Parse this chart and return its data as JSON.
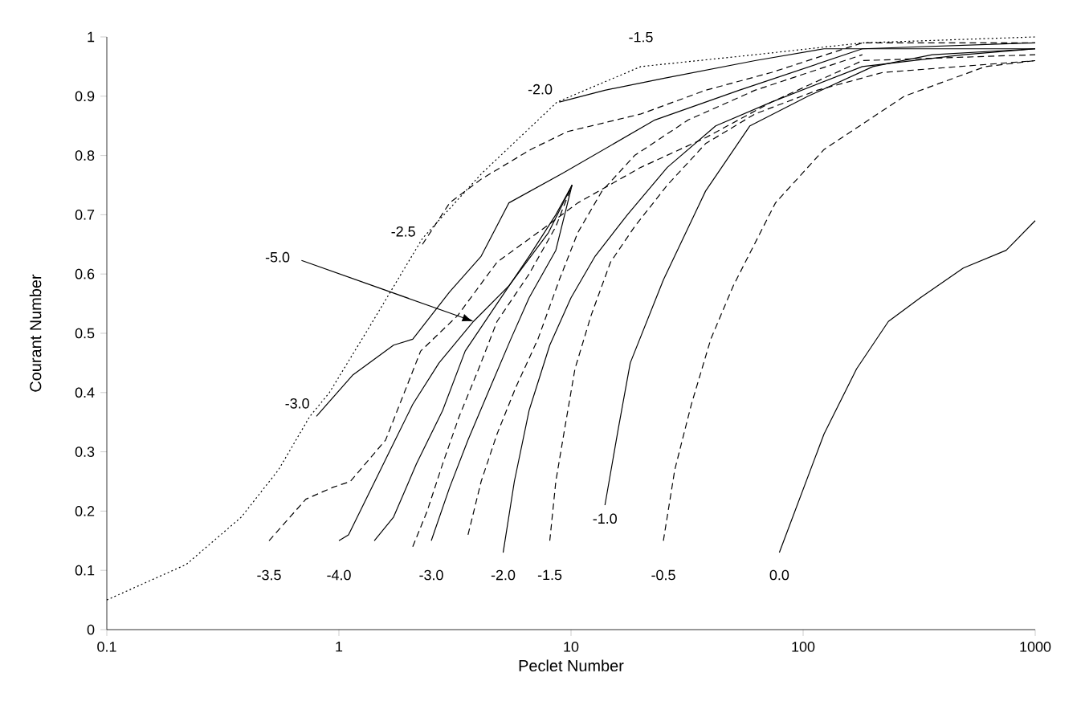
{
  "chart_data": {
    "type": "line",
    "xlabel": "Peclet Number",
    "ylabel": "Courant Number",
    "log": "x",
    "xlim": [
      0.1,
      1000
    ],
    "xticks": [
      0.1,
      1,
      10,
      100,
      1000
    ],
    "ylim": [
      0,
      1
    ],
    "yticks": [
      0,
      0.1,
      0.2,
      0.3,
      0.4,
      0.5,
      0.6,
      0.7,
      0.8,
      0.9,
      1
    ],
    "grid": false,
    "marker": "none",
    "series": [
      {
        "color": "#000000",
        "line_style": "dotted",
        "x": [
          0.1,
          0.22,
          0.38,
          0.55,
          0.75,
          0.91,
          1.35,
          2.29,
          4.13,
          8.7,
          20,
          62,
          180,
          1000
        ],
        "values": [
          0.05,
          0.11,
          0.19,
          0.27,
          0.36,
          0.4,
          0.51,
          0.66,
          0.77,
          0.89,
          0.95,
          0.97,
          0.99,
          1.0
        ]
      },
      {
        "color": "#000000",
        "line_style": "solid",
        "x": [
          8.9,
          14,
          25,
          62,
          123,
          358,
          1000
        ],
        "values": [
          0.89,
          0.91,
          0.93,
          0.96,
          0.98,
          0.98,
          0.98
        ]
      },
      {
        "color": "#000000",
        "line_style": "dashed",
        "x": [
          2.29,
          3.0,
          4.1,
          6.7,
          9.6,
          20,
          38,
          73,
          180,
          1000
        ],
        "values": [
          0.65,
          0.72,
          0.76,
          0.81,
          0.84,
          0.87,
          0.91,
          0.94,
          0.99,
          0.99
        ]
      },
      {
        "color": "#000000",
        "line_style": "solid",
        "x": [
          0.8,
          1.15,
          1.72,
          2.08,
          3.0,
          4.1,
          5.4,
          9.2,
          23,
          53,
          180,
          1000
        ],
        "values": [
          0.36,
          0.43,
          0.48,
          0.49,
          0.57,
          0.63,
          0.72,
          0.77,
          0.86,
          0.91,
          0.98,
          0.99
        ]
      },
      {
        "color": "#000000",
        "line_style": "dashed",
        "x": [
          0.5,
          0.72,
          0.94,
          1.12,
          1.59,
          2.25,
          3.25,
          4.8,
          7.2,
          10.7,
          20,
          38,
          73,
          180,
          1000
        ],
        "values": [
          0.15,
          0.22,
          0.24,
          0.25,
          0.32,
          0.47,
          0.53,
          0.62,
          0.67,
          0.72,
          0.78,
          0.83,
          0.89,
          0.96,
          0.97
        ]
      },
      {
        "color": "#000000",
        "line_style": "solid",
        "x": [
          1.0,
          1.1,
          1.65,
          2.08,
          2.7,
          3.8,
          5.4,
          8.0,
          10.1
        ],
        "values": [
          0.15,
          0.16,
          0.3,
          0.38,
          0.45,
          0.52,
          0.58,
          0.67,
          0.75
        ]
      },
      {
        "color": "#000000",
        "line_style": "solid",
        "x": [
          1.42,
          1.72,
          2.16,
          2.8,
          3.5,
          4.8,
          6.6,
          8.6,
          10.1
        ],
        "values": [
          0.15,
          0.19,
          0.28,
          0.37,
          0.47,
          0.55,
          0.63,
          0.7,
          0.75
        ]
      },
      {
        "color": "#000000",
        "line_style": "dashed",
        "x": [
          2.08,
          2.4,
          2.8,
          3.3,
          4.0,
          4.8,
          6.6,
          8.6,
          10.1
        ],
        "values": [
          0.14,
          0.2,
          0.28,
          0.36,
          0.44,
          0.52,
          0.6,
          0.68,
          0.75
        ]
      },
      {
        "color": "#000000",
        "line_style": "solid",
        "x": [
          2.5,
          3.0,
          3.6,
          4.5,
          5.5,
          6.6,
          8.6,
          10.1
        ],
        "values": [
          0.15,
          0.24,
          0.32,
          0.41,
          0.49,
          0.56,
          0.64,
          0.75
        ]
      },
      {
        "color": "#000000",
        "line_style": "dashed",
        "x": [
          3.6,
          4.1,
          4.8,
          5.8,
          7.2,
          8.9,
          10.7,
          13.6,
          18.8,
          32,
          62,
          180
        ],
        "values": [
          0.16,
          0.25,
          0.33,
          0.41,
          0.49,
          0.59,
          0.67,
          0.74,
          0.8,
          0.86,
          0.91,
          0.97
        ]
      },
      {
        "color": "#000000",
        "line_style": "solid",
        "x": [
          5.1,
          5.7,
          6.6,
          8.1,
          10,
          12.7,
          17.5,
          26,
          42,
          73,
          180,
          490,
          1000
        ],
        "values": [
          0.13,
          0.25,
          0.37,
          0.48,
          0.56,
          0.63,
          0.7,
          0.78,
          0.85,
          0.89,
          0.95,
          0.97,
          0.98
        ]
      },
      {
        "color": "#000000",
        "line_style": "dashed",
        "x": [
          8.1,
          8.6,
          9.4,
          10.4,
          12.2,
          14.8,
          18.8,
          26,
          38,
          62,
          115,
          220,
          1000
        ],
        "values": [
          0.15,
          0.25,
          0.34,
          0.44,
          0.53,
          0.62,
          0.68,
          0.75,
          0.82,
          0.87,
          0.91,
          0.94,
          0.96
        ]
      },
      {
        "color": "#000000",
        "line_style": "solid",
        "x": [
          14,
          16,
          18,
          25,
          38,
          59,
          105,
          200,
          360,
          1000
        ],
        "values": [
          0.21,
          0.34,
          0.45,
          0.59,
          0.74,
          0.85,
          0.9,
          0.95,
          0.97,
          0.98
        ]
      },
      {
        "color": "#000000",
        "line_style": "dashed",
        "x": [
          25,
          28,
          33,
          40,
          50,
          76,
          123,
          273,
          610,
          1000
        ],
        "values": [
          0.15,
          0.27,
          0.38,
          0.49,
          0.58,
          0.72,
          0.81,
          0.9,
          0.95,
          0.96
        ]
      },
      {
        "color": "#000000",
        "line_style": "solid",
        "x": [
          79,
          123,
          170,
          233,
          320,
          490,
          750,
          1000
        ],
        "values": [
          0.13,
          0.33,
          0.44,
          0.52,
          0.56,
          0.61,
          0.64,
          0.69
        ]
      }
    ],
    "annotations": [
      {
        "text": "-1.5",
        "x": 20,
        "y": 0.95
      },
      {
        "text": "-2.0",
        "x": 8.9,
        "y": 0.89
      },
      {
        "text": "-2.5",
        "x": 2.29,
        "y": 0.65
      },
      {
        "text": "-3.0",
        "x": 0.8,
        "y": 0.36
      },
      {
        "text": "-5.0",
        "x": 3.8,
        "y": 0.52
      },
      {
        "text": "-3.5",
        "x": 0.5,
        "y": 0.15
      },
      {
        "text": "-4.0",
        "x": 1.0,
        "y": 0.15
      },
      {
        "text": "-3.0",
        "x": 2.5,
        "y": 0.15
      },
      {
        "text": "-2.0",
        "x": 5.1,
        "y": 0.13
      },
      {
        "text": "-1.5",
        "x": 8.1,
        "y": 0.15
      },
      {
        "text": "-1.0",
        "x": 14,
        "y": 0.21
      },
      {
        "text": "-0.5",
        "x": 25,
        "y": 0.15
      },
      {
        "text": "0.0",
        "x": 79,
        "y": 0.13
      }
    ]
  }
}
